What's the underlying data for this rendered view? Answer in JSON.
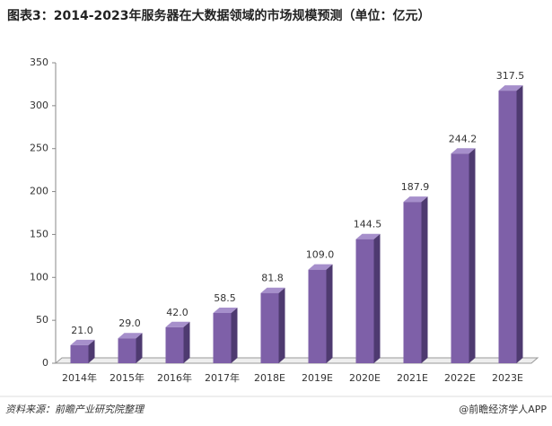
{
  "chart_data": {
    "type": "bar",
    "title": "图表3：2014-2023年服务器在大数据领域的市场规模预测（单位：亿元）",
    "categories": [
      "2014年",
      "2015年",
      "2016年",
      "2017年",
      "2018E",
      "2019E",
      "2020E",
      "2021E",
      "2022E",
      "2023E"
    ],
    "values": [
      21.0,
      29.0,
      42.0,
      58.5,
      81.8,
      109.0,
      144.5,
      187.9,
      244.2,
      317.5
    ],
    "value_labels": [
      "21.0",
      "29.0",
      "42.0",
      "58.5",
      "81.8",
      "109.0",
      "144.5",
      "187.9",
      "244.2",
      "317.5"
    ],
    "color": "#7e60a8",
    "ylim": [
      0,
      350
    ],
    "yticks": [
      0,
      50,
      100,
      150,
      200,
      250,
      300,
      350
    ],
    "grid": false,
    "source": "资料来源：前瞻产业研究院整理",
    "credit": "@前瞻经济学人APP"
  }
}
